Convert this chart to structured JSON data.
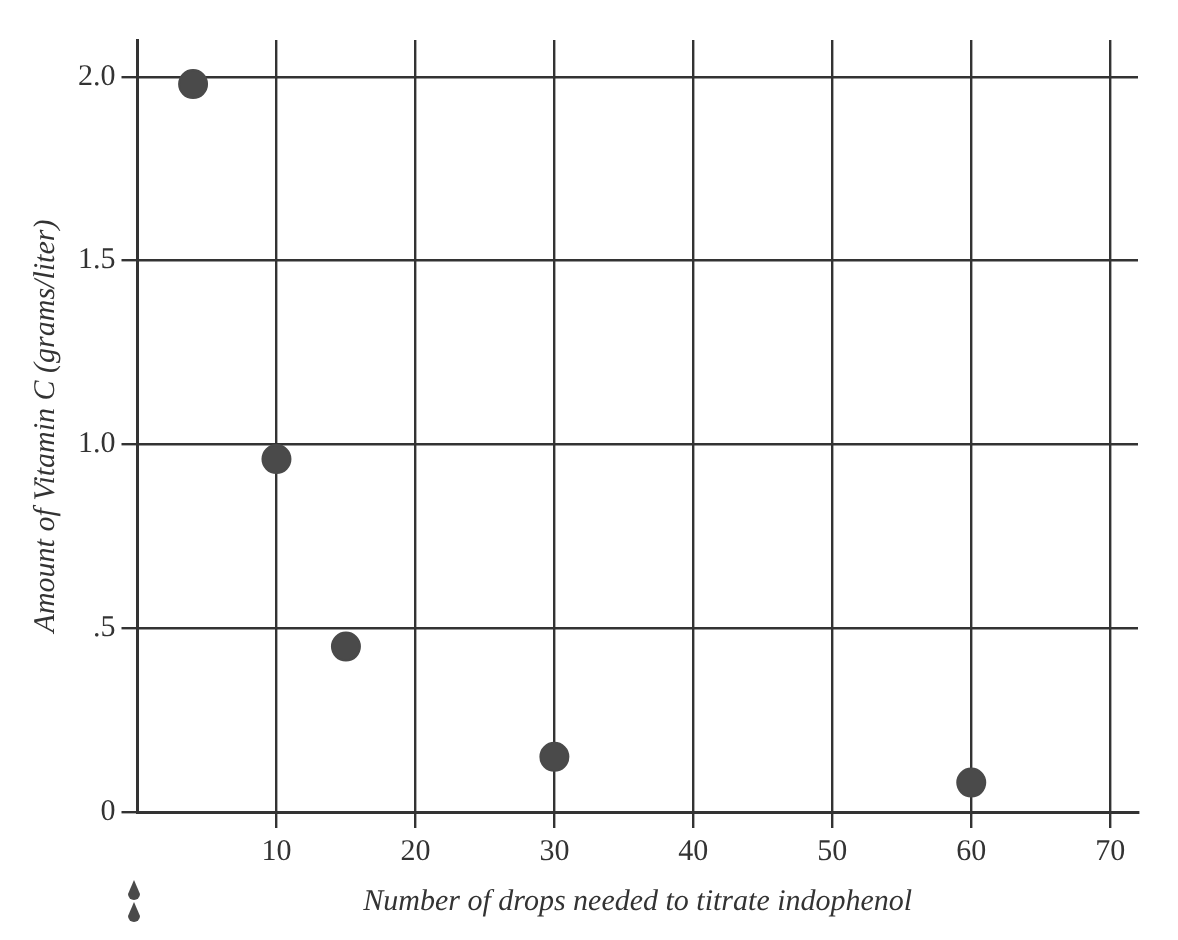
{
  "chart_data": {
    "type": "scatter",
    "xlabel": "Number of drops needed to titrate indophenol",
    "ylabel": "Amount of Vitamin C (grams/liter)",
    "x": [
      4,
      10,
      15,
      30,
      60
    ],
    "series": [
      {
        "color": "#4a4a4a",
        "values": [
          1.98,
          0.96,
          0.45,
          0.15,
          0.08
        ]
      }
    ],
    "xlim": [
      0,
      72
    ],
    "xticks": [
      10,
      20,
      30,
      40,
      50,
      60,
      70
    ],
    "ylim": [
      0,
      2.1
    ],
    "yticks": [
      0,
      {
        "value": 0.5,
        "label": ".5"
      },
      {
        "value": 1,
        "label": "1.0"
      },
      1.5,
      {
        "value": 2,
        "label": "2.0"
      }
    ],
    "grid": true,
    "legend": false,
    "marker": "circle"
  }
}
